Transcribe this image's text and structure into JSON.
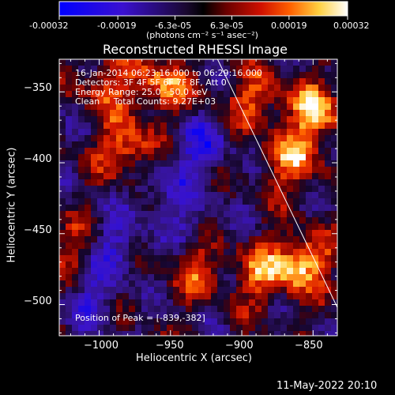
{
  "colorbar": {
    "ticks": [
      "-0.00032",
      "-0.00019",
      "-6.3e-05",
      "6.3e-05",
      "0.00019",
      "0.00032"
    ],
    "tick_values": [
      -0.00032,
      -0.00019,
      -6.3e-05,
      6.3e-05,
      0.00019,
      0.00032
    ],
    "units_text": "(photons cm⁻² s⁻¹ asec⁻²)"
  },
  "chart_data": {
    "type": "heatmap",
    "title": "Reconstructed RHESSI Image",
    "xlabel": "Heliocentric X (arcsec)",
    "ylabel": "Heliocentric Y (arcsec)",
    "xlim": [
      -1028,
      -833
    ],
    "ylim": [
      -522,
      -327
    ],
    "x_ticks": [
      -1000,
      -950,
      -900,
      -850
    ],
    "y_ticks": [
      -350,
      -400,
      -450,
      -500
    ],
    "x_tick_labels": [
      "−1000",
      "−950",
      "−900",
      "−850"
    ],
    "y_tick_labels": [
      "−350",
      "−400",
      "−450",
      "−500"
    ],
    "color_range": [
      -0.00032,
      0.00032
    ],
    "limb_line": [
      [
        -917,
        -327
      ],
      [
        -833,
        -502
      ]
    ],
    "bright_regions": [
      {
        "x": -858,
        "y": -470,
        "level": 0.95
      },
      {
        "x": -848,
        "y": -365,
        "level": 0.9
      },
      {
        "x": -865,
        "y": -400,
        "level": 0.75
      },
      {
        "x": -980,
        "y": -390,
        "level": 0.8
      },
      {
        "x": -955,
        "y": -345,
        "level": 0.75
      },
      {
        "x": -890,
        "y": -355,
        "level": 0.6
      },
      {
        "x": -995,
        "y": -345,
        "level": 0.55
      },
      {
        "x": -930,
        "y": -475,
        "level": 0.55
      },
      {
        "x": -885,
        "y": -480,
        "level": 0.6
      },
      {
        "x": -1015,
        "y": -460,
        "level": 0.45
      }
    ],
    "dark_regions": [
      {
        "x": -930,
        "y": -390,
        "level": -0.6
      },
      {
        "x": -990,
        "y": -460,
        "level": -0.55
      },
      {
        "x": -960,
        "y": -420,
        "level": -0.4
      },
      {
        "x": -1005,
        "y": -495,
        "level": -0.45
      },
      {
        "x": -935,
        "y": -440,
        "level": -0.35
      }
    ],
    "peak_marker": {
      "x": -839,
      "y": -382
    }
  },
  "annotations": {
    "line1": "16-Jan-2014 06:23:16.000 to 06:29:16.000",
    "line2": "Detectors: 3F 4F 5F 6F 7F 8F, Att 0",
    "line3": "Energy Range: 25.0 - 50.0 keV",
    "line4": "Clean     Total Counts: 9.27E+03",
    "peak": "Position of Peak = [-839,-382]"
  },
  "footer": {
    "date": "11-May-2022 20:10"
  }
}
